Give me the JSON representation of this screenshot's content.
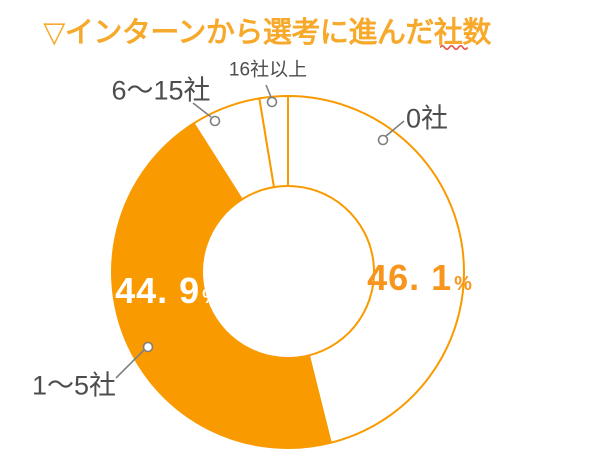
{
  "page": {
    "background_color": "#FFFFFF"
  },
  "header": {
    "title": "▽インターンから選考に進んだ社数",
    "title_color": "#F7A92B",
    "underline_color": "#E4554A"
  },
  "chart_data": {
    "type": "pie",
    "subtype": "donut",
    "title": "▽インターンから選考に進んだ社数",
    "categories": [
      "0社",
      "1〜5社",
      "6〜15社",
      "16社以上"
    ],
    "values": [
      46.1,
      44.9,
      6.4,
      2.6
    ],
    "unit": "%",
    "start_angle_deg": 0,
    "direction": "clockwise",
    "donut_hole_ratio": 0.49,
    "slice_fill_colors": [
      "#FFFFFF",
      "#F99A00",
      "#FFFFFF",
      "#FFFFFF"
    ],
    "slice_outline_color": "#F99A00",
    "legend": "none",
    "data_labels": [
      {
        "category": "0社",
        "text": "46. 1",
        "unit": "%",
        "color": "#F8951C"
      },
      {
        "category": "1〜5社",
        "text": "44. 9",
        "unit": "%",
        "color": "#FFFFFF"
      }
    ]
  },
  "callouts": {
    "label_16plus": "16社以上",
    "label_6to15": "6〜15社",
    "label_0": "0社",
    "label_1to5": "1〜5社",
    "text_color": "#4D4D4D",
    "leader_color": "#7F7F7F"
  },
  "value_labels": {
    "pct_1to5": "44. 9",
    "pct_0": "46. 1",
    "unit": "%"
  }
}
